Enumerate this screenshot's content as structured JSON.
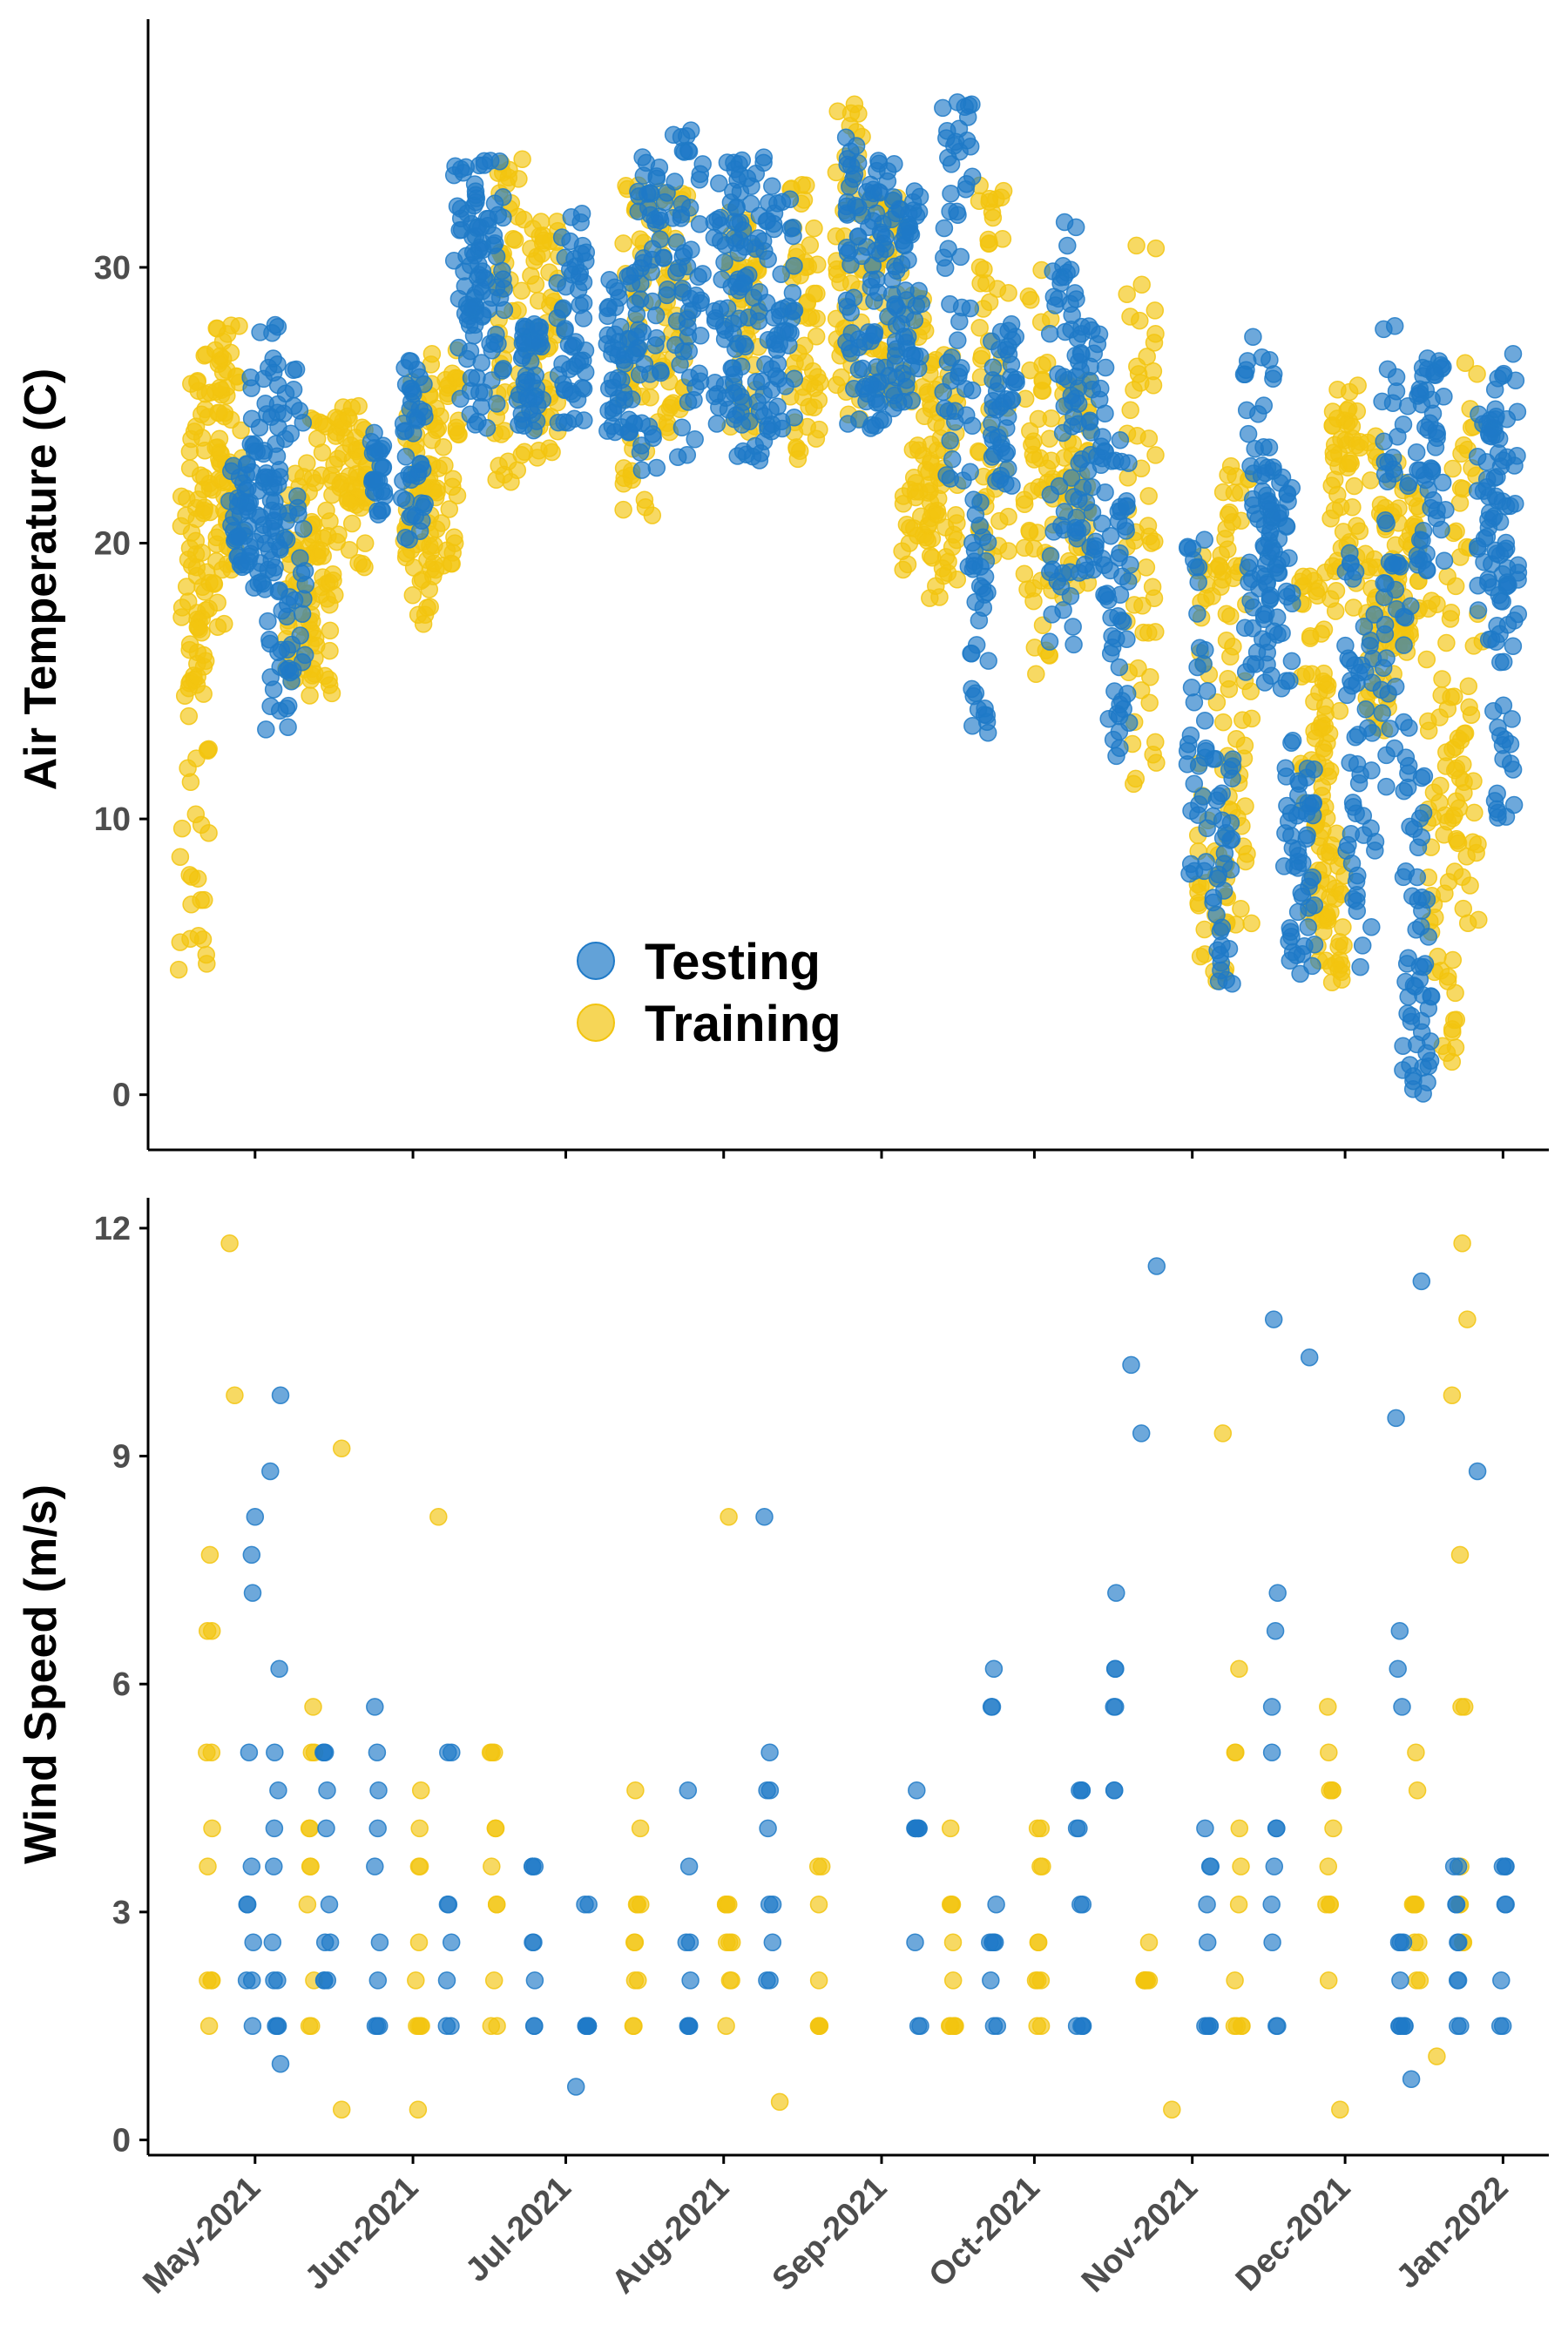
{
  "colors": {
    "testing": "#1f7ac7",
    "training": "#f2c40f",
    "axis": "#000000",
    "tick_text": "#4d4d4d"
  },
  "legend": {
    "items": [
      {
        "label": "Testing"
      },
      {
        "label": "Training"
      }
    ],
    "placement": "bottom-left inside top panel"
  },
  "chart_data": [
    {
      "type": "scatter",
      "title": "",
      "ylabel": "Air Temperature (C)",
      "xlabel": "",
      "xlim": [
        "2021-04-10",
        "2022-01-10"
      ],
      "ylim": [
        -2,
        39
      ],
      "yticks": [
        0,
        10,
        20,
        30
      ],
      "grid": false,
      "series": [
        {
          "name": "Testing",
          "segments": [
            [
              "2021-04-28",
              19,
              23,
              2.2
            ],
            [
              "2021-05-03",
              18,
              28,
              3
            ],
            [
              "2021-05-07",
              13,
              27,
              4
            ],
            [
              "2021-05-25",
              21,
              24,
              1.5
            ],
            [
              "2021-06-01",
              20,
              27,
              2.5
            ],
            [
              "2021-06-12",
              24,
              34,
              3
            ],
            [
              "2021-06-16",
              24,
              34,
              3
            ],
            [
              "2021-06-24",
              24,
              28,
              2.5
            ],
            [
              "2021-07-02",
              24,
              32,
              3
            ],
            [
              "2021-07-12",
              24,
              30,
              3
            ],
            [
              "2021-07-18",
              22,
              34,
              3
            ],
            [
              "2021-07-25",
              23,
              35,
              3
            ],
            [
              "2021-08-02",
              24,
              34,
              3
            ],
            [
              "2021-08-06",
              23,
              34,
              3
            ],
            [
              "2021-08-12",
              24,
              33,
              3
            ],
            [
              "2021-08-28",
              24,
              35,
              3
            ],
            [
              "2021-09-01",
              24,
              34,
              3
            ],
            [
              "2021-09-06",
              25,
              33,
              3
            ],
            [
              "2021-09-16",
              22,
              36,
              3
            ],
            [
              "2021-09-20",
              13,
              22,
              2
            ],
            [
              "2021-09-25",
              22,
              28,
              2.5
            ],
            [
              "2021-10-07",
              16,
              32,
              3
            ],
            [
              "2021-10-12",
              19,
              28,
              3
            ],
            [
              "2021-10-17",
              12,
              24,
              3
            ],
            [
              "2021-11-02",
              7,
              21,
              2
            ],
            [
              "2021-11-07",
              4,
              13,
              2
            ],
            [
              "2021-11-14",
              15,
              28,
              3
            ],
            [
              "2021-11-18",
              14,
              23,
              3
            ],
            [
              "2021-11-22",
              4,
              13,
              3
            ],
            [
              "2021-12-04",
              4,
              20,
              3
            ],
            [
              "2021-12-11",
              11,
              28,
              3
            ],
            [
              "2021-12-15",
              0,
              12,
              3
            ],
            [
              "2021-12-18",
              19,
              27,
              3
            ],
            [
              "2021-12-30",
              17,
              25,
              3
            ],
            [
              "2022-01-01",
              10,
              27,
              3
            ]
          ]
        },
        {
          "name": "Training",
          "segments": [
            [
              "2021-04-19",
              3,
              22,
              3
            ],
            [
              "2021-04-22",
              15,
              27,
              4
            ],
            [
              "2021-04-26",
              19,
              28,
              3
            ],
            [
              "2021-05-10",
              15,
              23,
              3
            ],
            [
              "2021-05-14",
              14,
              25,
              3
            ],
            [
              "2021-05-20",
              19,
              25,
              3
            ],
            [
              "2021-06-02",
              17,
              26,
              3
            ],
            [
              "2021-06-07",
              19,
              27,
              3
            ],
            [
              "2021-06-20",
              22,
              34,
              3
            ],
            [
              "2021-06-27",
              23,
              32,
              3
            ],
            [
              "2021-07-15",
              21,
              33,
              3
            ],
            [
              "2021-07-22",
              24,
              33,
              3
            ],
            [
              "2021-08-05",
              24,
              32,
              3
            ],
            [
              "2021-08-17",
              23,
              33,
              3
            ],
            [
              "2021-08-26",
              24,
              36,
              3
            ],
            [
              "2021-09-02",
              25,
              33,
              3
            ],
            [
              "2021-09-08",
              19,
              29,
              3
            ],
            [
              "2021-09-13",
              18,
              27,
              3
            ],
            [
              "2021-09-23",
              19,
              33,
              3
            ],
            [
              "2021-10-02",
              15,
              30,
              3
            ],
            [
              "2021-10-09",
              18,
              26,
              3
            ],
            [
              "2021-10-22",
              11,
              31,
              3
            ],
            [
              "2021-11-05",
              4,
              20,
              3
            ],
            [
              "2021-11-10",
              6,
              23,
              3
            ],
            [
              "2021-11-25",
              6,
              19,
              3
            ],
            [
              "2021-11-28",
              4,
              14,
              3
            ],
            [
              "2021-12-01",
              17,
              26,
              3
            ],
            [
              "2021-12-08",
              13,
              24,
              3
            ],
            [
              "2021-12-13",
              16,
              23,
              3
            ],
            [
              "2021-12-20",
              1,
              19,
              3
            ],
            [
              "2021-12-25",
              6,
              27,
              3
            ]
          ]
        }
      ]
    },
    {
      "type": "scatter",
      "title": "",
      "ylabel": "Wind Speed (m/s)",
      "xlabel": "",
      "xlim": [
        "2021-04-10",
        "2022-01-10"
      ],
      "ylim": [
        -0.2,
        12.4
      ],
      "yticks": [
        0,
        3,
        6,
        9,
        12
      ],
      "xticks": [
        "2021-05-01",
        "2021-06-01",
        "2021-07-01",
        "2021-08-01",
        "2021-09-01",
        "2021-10-01",
        "2021-11-01",
        "2021-12-01",
        "2022-01-01"
      ],
      "xticklabels": [
        "May-2021",
        "Jun-2021",
        "Jul-2021",
        "Aug-2021",
        "Sep-2021",
        "Oct-2021",
        "Nov-2021",
        "Dec-2021",
        "Jan-2022"
      ],
      "grid": false,
      "levels": [
        1.5,
        2.1,
        2.6,
        3.1,
        3.6,
        4.1,
        4.6,
        5.1,
        5.7,
        6.2,
        6.7,
        7.2,
        7.7
      ],
      "series": [
        {
          "name": "Testing",
          "segments": [
            [
              "2021-04-30",
              1.5,
              8.3,
              0.7
            ],
            [
              "2021-05-05",
              1.5,
              6.3,
              0.75
            ],
            [
              "2021-05-15",
              2.0,
              5.5,
              0.8
            ],
            [
              "2021-05-25",
              1.5,
              5.7,
              0.7
            ],
            [
              "2021-06-08",
              1.5,
              5.2,
              0.6
            ],
            [
              "2021-06-25",
              1.5,
              3.6,
              0.6
            ],
            [
              "2021-07-05",
              1.5,
              3.1,
              0.5
            ],
            [
              "2021-07-25",
              1.5,
              4.6,
              0.65
            ],
            [
              "2021-08-10",
              2.1,
              6.7,
              0.65
            ],
            [
              "2021-09-08",
              1.5,
              4.6,
              0.7
            ],
            [
              "2021-09-23",
              1.5,
              6.2,
              0.75
            ],
            [
              "2021-10-10",
              1.5,
              5.7,
              0.75
            ],
            [
              "2021-10-17",
              4.6,
              7.2,
              0.5
            ],
            [
              "2021-11-04",
              1.5,
              4.6,
              0.65
            ],
            [
              "2021-11-17",
              1.5,
              7.7,
              0.8
            ],
            [
              "2021-12-12",
              1.5,
              6.7,
              0.85
            ],
            [
              "2021-12-23",
              1.5,
              6.7,
              0.7
            ],
            [
              "2022-01-01",
              1.5,
              5.1,
              0.6
            ]
          ]
        },
        {
          "name": "Training",
          "segments": [
            [
              "2021-04-22",
              1.5,
              7.7,
              0.8
            ],
            [
              "2021-05-12",
              1.5,
              6.2,
              0.8
            ],
            [
              "2021-06-02",
              1.5,
              4.6,
              0.7
            ],
            [
              "2021-06-17",
              1.5,
              5.1,
              0.8
            ],
            [
              "2021-07-15",
              1.5,
              4.6,
              0.8
            ],
            [
              "2021-08-02",
              1.5,
              4.1,
              0.7
            ],
            [
              "2021-08-20",
              1.5,
              3.6,
              0.6
            ],
            [
              "2021-09-15",
              1.5,
              4.6,
              0.8
            ],
            [
              "2021-10-02",
              1.5,
              4.6,
              0.8
            ],
            [
              "2021-10-23",
              2.1,
              4.1,
              0.55
            ],
            [
              "2021-11-10",
              1.5,
              6.2,
              0.75
            ],
            [
              "2021-11-28",
              1.5,
              5.7,
              0.75
            ],
            [
              "2021-12-15",
              2.1,
              5.1,
              0.7
            ],
            [
              "2021-12-24",
              2.6,
              8.2,
              0.55
            ]
          ]
        }
      ],
      "outliers": [
        [
          "Testing",
          "2021-05-01",
          8.2
        ],
        [
          "Testing",
          "2021-05-06",
          9.8
        ],
        [
          "Testing",
          "2021-05-04",
          8.8
        ],
        [
          "Testing",
          "2021-10-20",
          10.2
        ],
        [
          "Testing",
          "2021-10-22",
          9.3
        ],
        [
          "Testing",
          "2021-10-25",
          11.5
        ],
        [
          "Testing",
          "2021-12-16",
          11.3
        ],
        [
          "Testing",
          "2021-11-17",
          10.8
        ],
        [
          "Testing",
          "2021-11-24",
          10.3
        ],
        [
          "Testing",
          "2021-12-11",
          9.5
        ],
        [
          "Testing",
          "2021-12-27",
          8.8
        ],
        [
          "Testing",
          "2021-08-09",
          8.2
        ],
        [
          "Testing",
          "2021-12-14",
          0.8
        ],
        [
          "Testing",
          "2021-05-06",
          1.0
        ],
        [
          "Testing",
          "2021-07-03",
          0.7
        ],
        [
          "Training",
          "2021-04-26",
          11.8
        ],
        [
          "Training",
          "2021-04-27",
          9.8
        ],
        [
          "Training",
          "2021-05-18",
          9.1
        ],
        [
          "Training",
          "2021-12-24",
          11.8
        ],
        [
          "Training",
          "2021-12-25",
          10.8
        ],
        [
          "Training",
          "2021-12-22",
          9.8
        ],
        [
          "Training",
          "2021-11-07",
          9.3
        ],
        [
          "Training",
          "2021-08-02",
          8.2
        ],
        [
          "Training",
          "2021-06-06",
          8.2
        ],
        [
          "Training",
          "2021-05-18",
          0.4
        ],
        [
          "Training",
          "2021-06-02",
          0.4
        ],
        [
          "Training",
          "2021-08-12",
          0.5
        ],
        [
          "Training",
          "2021-11-30",
          0.4
        ],
        [
          "Training",
          "2021-10-28",
          0.4
        ],
        [
          "Training",
          "2021-12-19",
          1.1
        ]
      ]
    }
  ]
}
